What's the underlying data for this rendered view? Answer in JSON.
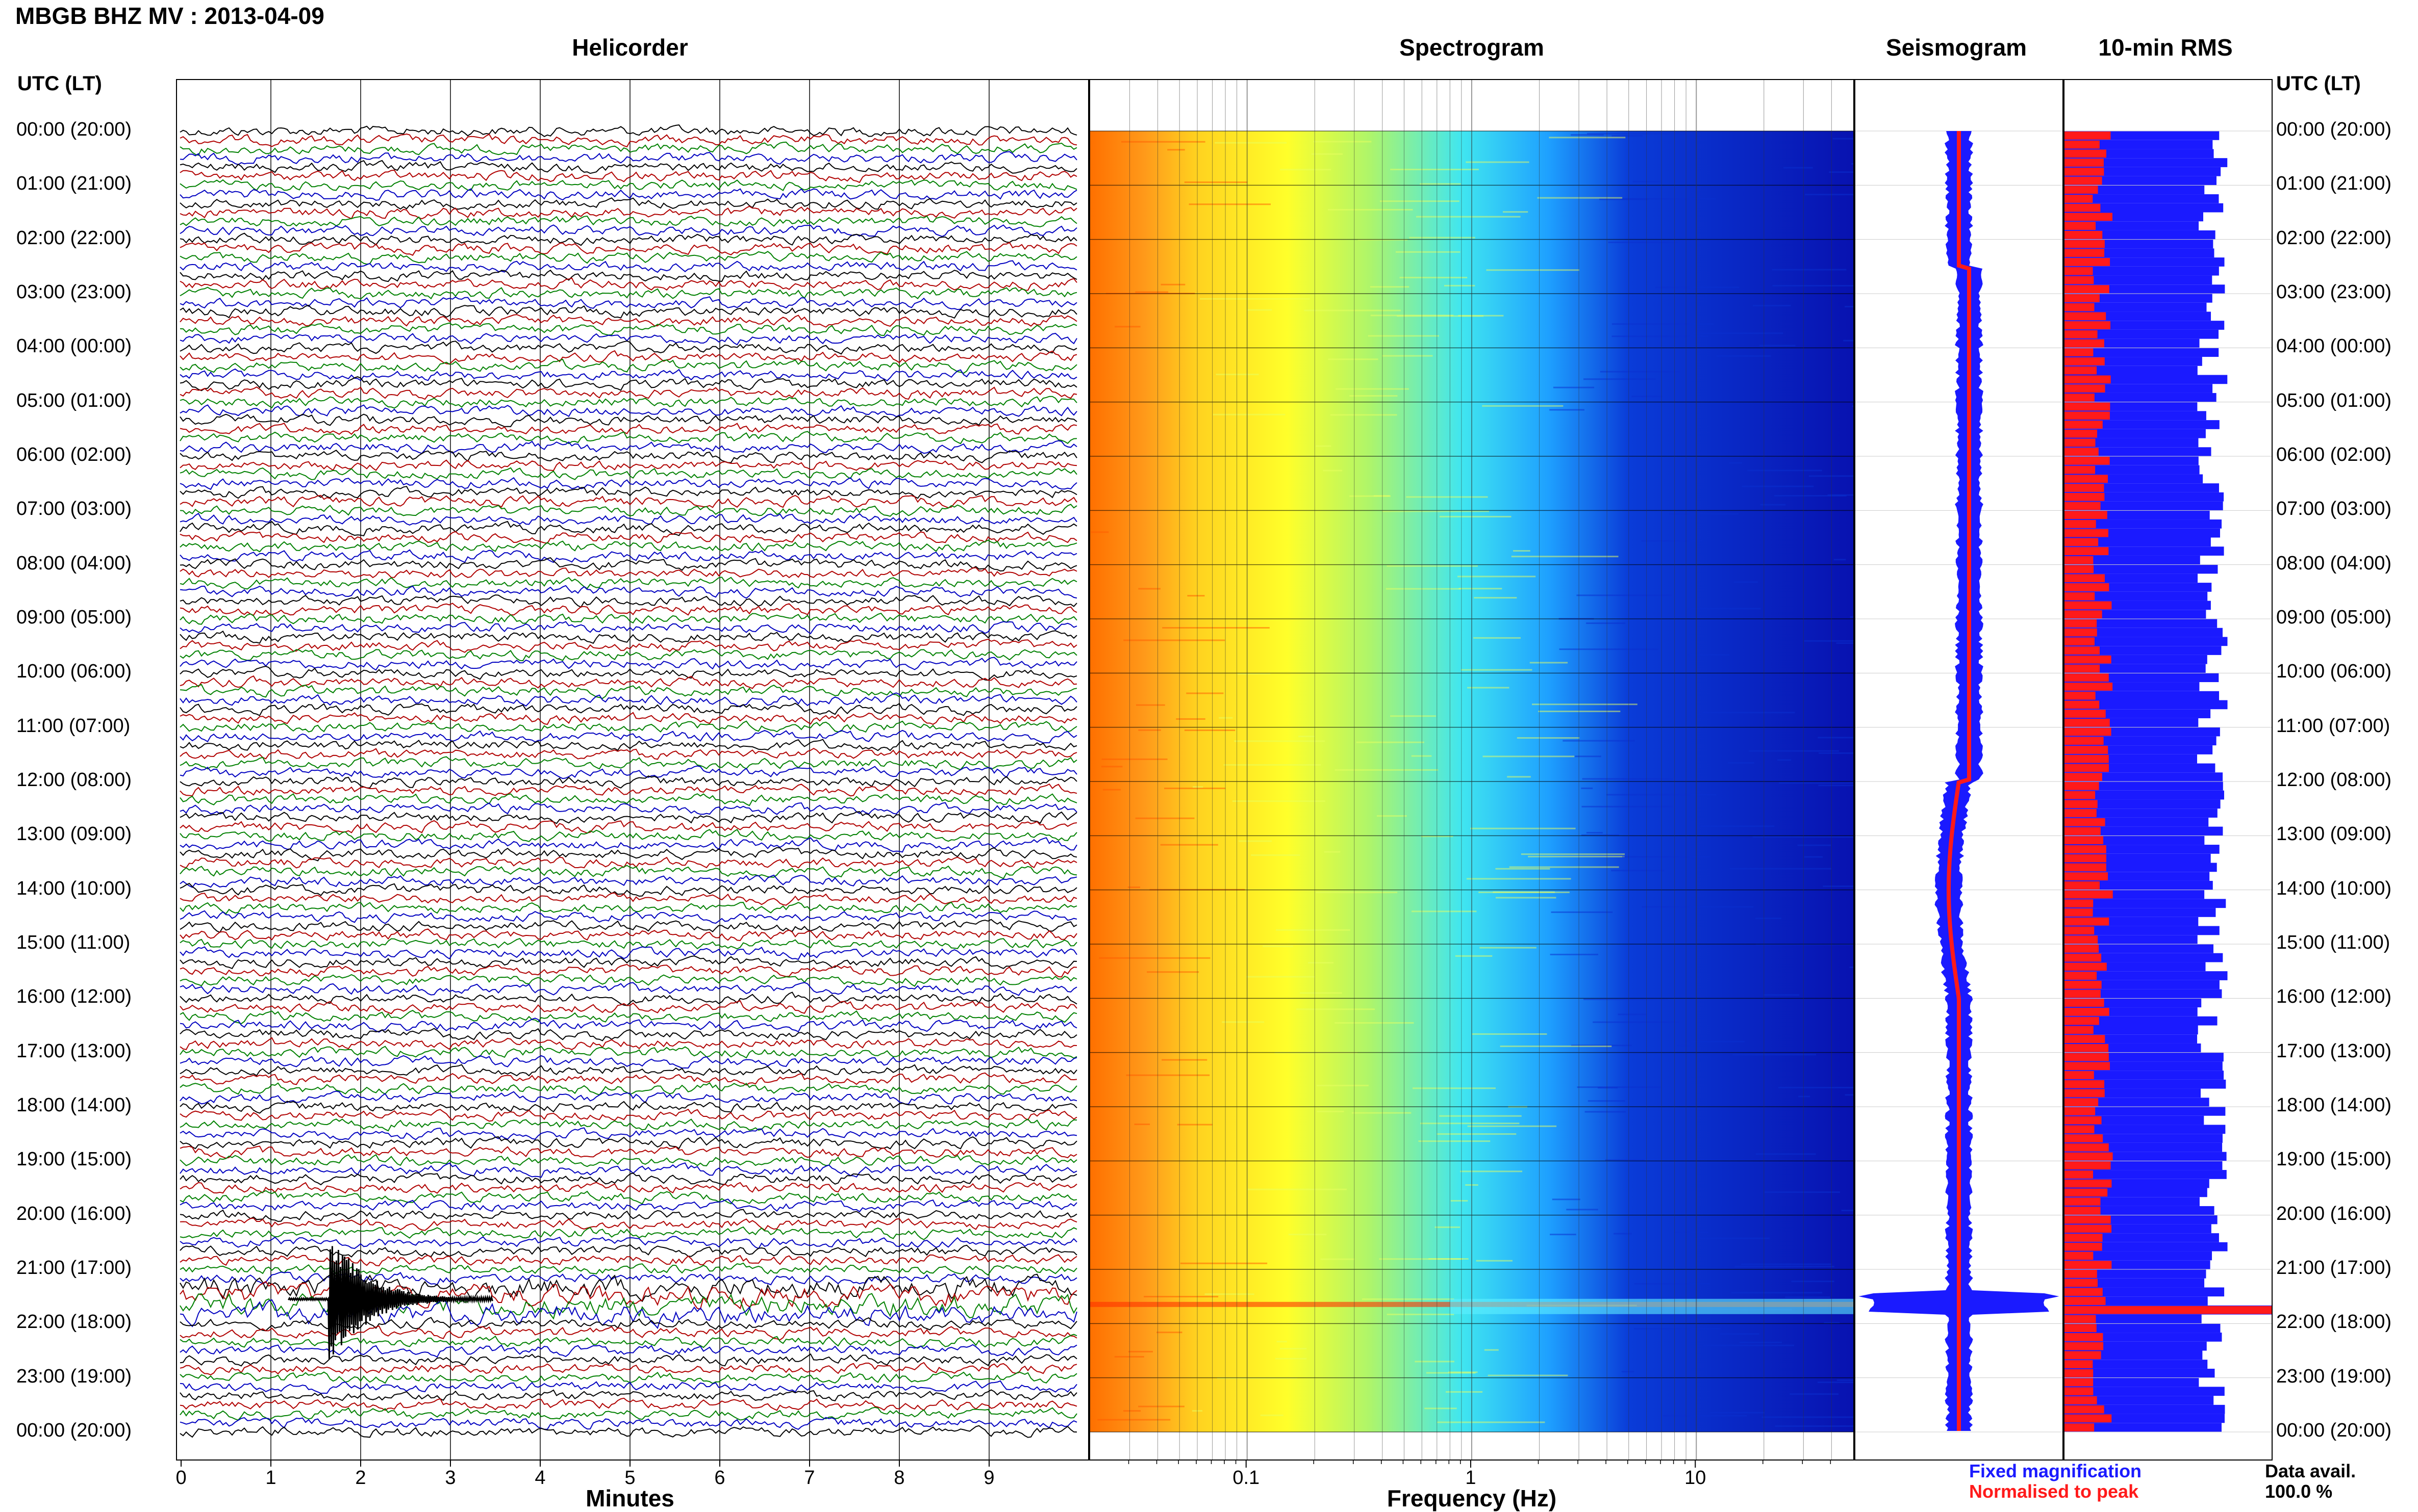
{
  "header": {
    "title": "MBGB BHZ MV : 2013-04-09"
  },
  "panels": {
    "helicorder": "Helicorder",
    "spectrogram": "Spectrogram",
    "seismogram": "Seismogram",
    "rms": "10-min RMS"
  },
  "time_axis": {
    "header_left": "UTC (LT)",
    "header_right": "UTC (LT)",
    "labels": [
      "00:00 (20:00)",
      "01:00 (21:00)",
      "02:00 (22:00)",
      "03:00 (23:00)",
      "04:00 (00:00)",
      "05:00 (01:00)",
      "06:00 (02:00)",
      "07:00 (03:00)",
      "08:00 (04:00)",
      "09:00 (05:00)",
      "10:00 (06:00)",
      "11:00 (07:00)",
      "12:00 (08:00)",
      "13:00 (09:00)",
      "14:00 (10:00)",
      "15:00 (11:00)",
      "16:00 (12:00)",
      "17:00 (13:00)",
      "18:00 (14:00)",
      "19:00 (15:00)",
      "20:00 (16:00)",
      "21:00 (17:00)",
      "22:00 (18:00)",
      "23:00 (19:00)",
      "00:00 (20:00)"
    ]
  },
  "x_axes": {
    "minutes_label": "Minutes",
    "minutes_ticks": [
      "0",
      "1",
      "2",
      "3",
      "4",
      "5",
      "6",
      "7",
      "8",
      "9"
    ],
    "frequency_label": "Frequency (Hz)",
    "frequency_ticks": [
      "0.1",
      "1",
      "10"
    ]
  },
  "legend": {
    "fixed": "Fixed magnification",
    "normalised": "Normalised to peak",
    "data_avail_label": "Data avail.",
    "data_avail_value": "100.0 %"
  },
  "colors": {
    "blue": "#1a1aff",
    "red": "#ff1a1a",
    "trace_colors": [
      "#000000",
      "#b00000",
      "#008000",
      "#0000c0"
    ]
  },
  "chart_data": [
    {
      "type": "line",
      "title": "Helicorder",
      "xlabel": "Minutes",
      "xlim": [
        0,
        10
      ],
      "ylim": [
        "00:00",
        "00:00 next day"
      ],
      "note": "Ten-minute helicorder lines; event near 21:30 UTC at minute ~1.6"
    },
    {
      "type": "heatmap",
      "title": "Spectrogram",
      "xlabel": "Frequency (Hz)",
      "x_scale": "log",
      "xlim": [
        0.02,
        50
      ],
      "note": "Energy high (orange/red) below ~0.05 Hz, yellow ~0.2 Hz, cyan ~1 Hz, dark blue above ~3 Hz; bright horizontal band ~21:35 UTC"
    },
    {
      "type": "area",
      "title": "Seismogram",
      "series": [
        {
          "name": "Fixed magnification"
        },
        {
          "name": "Normalised to peak"
        }
      ]
    },
    {
      "type": "bar",
      "title": "10-min RMS",
      "series": [
        {
          "name": "Fixed magnification"
        },
        {
          "name": "Normalised to peak"
        }
      ]
    }
  ]
}
